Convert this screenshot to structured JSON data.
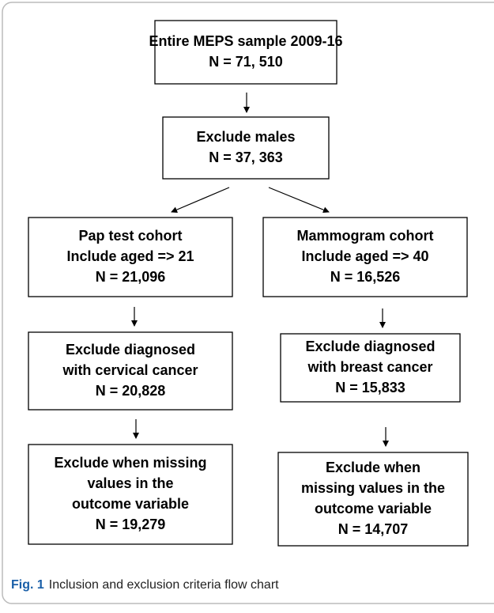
{
  "nodes": [
    {
      "lines": [
        "Entire MEPS sample 2009-16",
        "N = 71, 510"
      ]
    },
    {
      "lines": [
        "Exclude males",
        "N = 37, 363"
      ]
    },
    {
      "lines": [
        "Pap test cohort",
        "Include aged => 21",
        "N = 21,096"
      ]
    },
    {
      "lines": [
        "Mammogram cohort",
        "Include aged => 40",
        "N = 16,526"
      ]
    },
    {
      "lines": [
        "Exclude diagnosed",
        "with cervical cancer",
        "N = 20,828"
      ]
    },
    {
      "lines": [
        "Exclude diagnosed",
        "with breast cancer",
        "N = 15,833"
      ]
    },
    {
      "lines": [
        "Exclude when missing",
        "values in the",
        "outcome variable",
        "N = 19,279"
      ]
    },
    {
      "lines": [
        "Exclude when",
        "missing values in the",
        "outcome variable",
        "N = 14,707"
      ]
    }
  ],
  "caption": {
    "label": "Fig. 1",
    "text": "Inclusion and exclusion criteria flow chart"
  }
}
